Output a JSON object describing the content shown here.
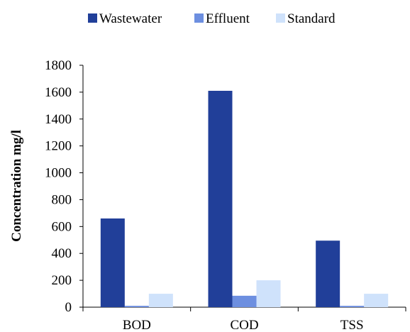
{
  "chart_data": {
    "type": "bar",
    "title": "",
    "xlabel": "",
    "ylabel": "Concentration mg/l",
    "ylim": [
      0,
      1800
    ],
    "yticks": [
      0,
      200,
      400,
      600,
      800,
      1000,
      1200,
      1400,
      1600,
      1800
    ],
    "grid": false,
    "legend_position": "top",
    "categories": [
      "BOD",
      "COD",
      "TSS"
    ],
    "series": [
      {
        "name": "Wastewater",
        "color": "#213f99",
        "values": [
          660,
          1610,
          495
        ]
      },
      {
        "name": "Effluent",
        "color": "#6d8fe0",
        "values": [
          10,
          85,
          10
        ]
      },
      {
        "name": "Standard",
        "color": "#cfe2fb",
        "values": [
          100,
          200,
          100
        ]
      }
    ]
  }
}
